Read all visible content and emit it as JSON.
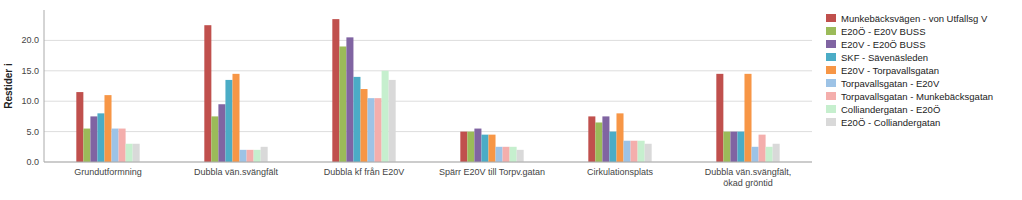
{
  "chart_data": {
    "type": "bar",
    "ylabel": "Restider i",
    "categories": [
      "Grundutformning",
      "Dubbla vän.svängfält",
      "Dubbla kf från E20V",
      "Spärr E20V till Torpv.gatan",
      "Cirkulationsplats",
      "Dubbla vän.svängfält,\nökad gröntid"
    ],
    "series": [
      {
        "name": "Munkebäcksvägen - von Utfallsg V",
        "color": "#C0504D",
        "values": [
          11.5,
          22.5,
          23.5,
          5.0,
          7.5,
          14.5
        ]
      },
      {
        "name": "E20Ö - E20V BUSS",
        "color": "#9BBB59",
        "values": [
          5.5,
          7.5,
          19.0,
          5.0,
          6.5,
          5.0
        ]
      },
      {
        "name": "E20V - E20Ö BUSS",
        "color": "#8064A2",
        "values": [
          7.5,
          9.5,
          20.5,
          5.5,
          7.5,
          5.0
        ]
      },
      {
        "name": "SKF - Sävenäsleden",
        "color": "#4BACC6",
        "values": [
          8.0,
          13.5,
          14.0,
          4.5,
          5.0,
          5.0
        ]
      },
      {
        "name": "E20V - Torpavallsgatan",
        "color": "#F79646",
        "values": [
          11.0,
          14.5,
          12.0,
          4.5,
          8.0,
          14.5
        ]
      },
      {
        "name": "Torpavallsgatan  - E20V",
        "color": "#9DC3E6",
        "values": [
          5.5,
          2.0,
          10.5,
          2.5,
          3.5,
          2.5
        ]
      },
      {
        "name": "Torpavallsgatan - Munkebäcksgatan",
        "color": "#F4AEAC",
        "values": [
          5.5,
          2.0,
          10.5,
          2.5,
          3.5,
          4.5
        ]
      },
      {
        "name": "Colliandergatan - E20Ö",
        "color": "#C6EFCE",
        "values": [
          3.0,
          2.0,
          15.0,
          2.5,
          3.5,
          2.5
        ]
      },
      {
        "name": "E20Ö - Colliandergatan",
        "color": "#D9D9D9",
        "values": [
          3.0,
          2.5,
          13.5,
          2.0,
          3.0,
          3.0
        ]
      }
    ],
    "ylim": [
      0,
      25
    ],
    "yticks": [
      {
        "value": 0.0,
        "label": "0.0"
      },
      {
        "value": 5.0,
        "label": "5.0"
      },
      {
        "value": 10.0,
        "label": "10.0"
      },
      {
        "value": 15.0,
        "label": "15.0"
      },
      {
        "value": 20.0,
        "label": "20.0"
      }
    ],
    "grid": true,
    "legend": "right"
  }
}
